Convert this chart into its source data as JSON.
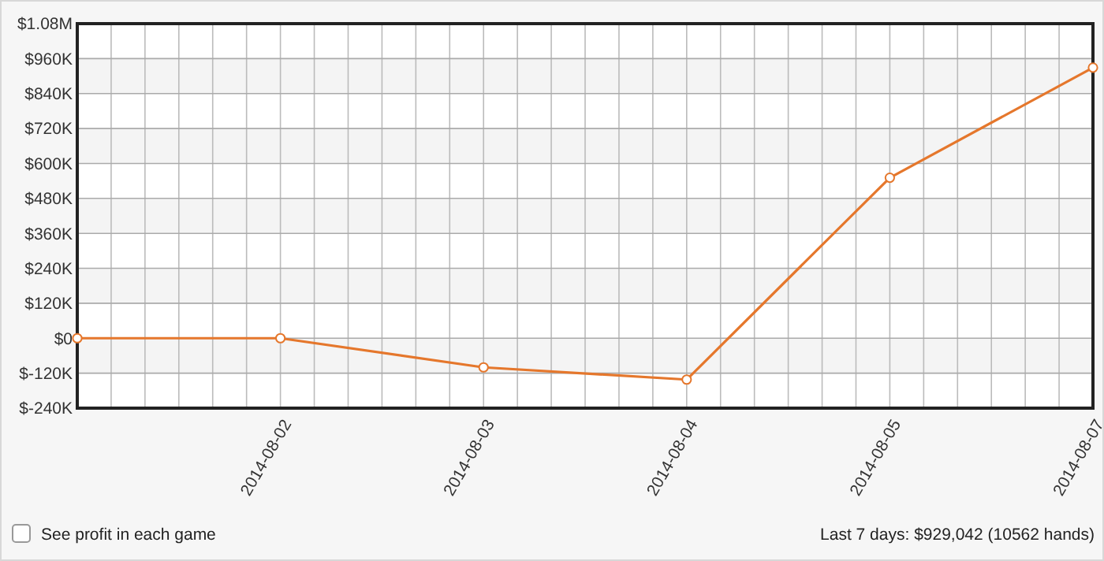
{
  "chart_data": {
    "type": "line",
    "categories": [
      null,
      "2014-08-02",
      "2014-08-03",
      "2014-08-04",
      "2014-08-05",
      "2014-08-07"
    ],
    "series": [
      {
        "color": "#e5772c",
        "values": [
          0,
          0,
          -100000,
          -142000,
          551000,
          929042
        ]
      }
    ],
    "ylim": [
      -240000,
      1080000
    ],
    "yticks": [
      {
        "value": -240000,
        "label": "$-240K"
      },
      {
        "value": -120000,
        "label": "$-120K"
      },
      {
        "value": 0,
        "label": "$0"
      },
      {
        "value": 120000,
        "label": "$120K"
      },
      {
        "value": 240000,
        "label": "$240K"
      },
      {
        "value": 360000,
        "label": "$360K"
      },
      {
        "value": 480000,
        "label": "$480K"
      },
      {
        "value": 600000,
        "label": "$600K"
      },
      {
        "value": 720000,
        "label": "$720K"
      },
      {
        "value": 840000,
        "label": "$840K"
      },
      {
        "value": 960000,
        "label": "$960K"
      },
      {
        "value": 1080000,
        "label": "$1.08M"
      }
    ],
    "grid": true,
    "marker": "circle",
    "line_style": "solid",
    "annotations": [
      "See profit in each game",
      "Last 7 days: $929,042 (10562 hands)"
    ]
  }
}
